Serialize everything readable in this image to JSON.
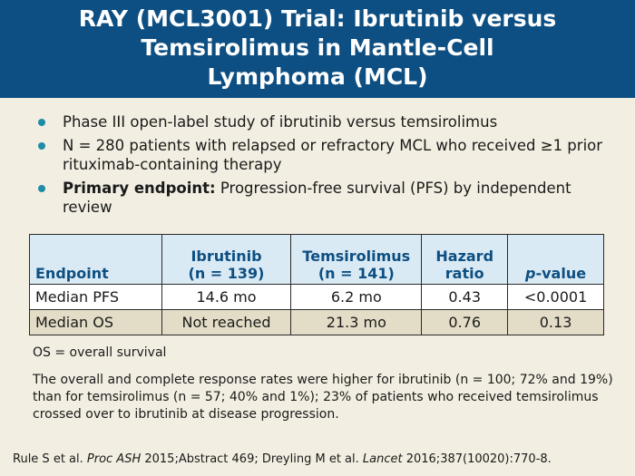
{
  "title": {
    "line1": "RAY (MCL3001) Trial: Ibrutinib versus",
    "line2": "Temsirolimus in Mantle-Cell",
    "line3": "Lymphoma (MCL)"
  },
  "bullets": {
    "b1": "Phase III open-label study of ibrutinib versus temsirolimus",
    "b2": "N = 280 patients with relapsed or refractory MCL who received ≥1 prior rituximab-containing therapy",
    "b3_bold": "Primary endpoint:",
    "b3_rest": " Progression-free survival (PFS) by independent review"
  },
  "table": {
    "headers": {
      "endpoint": "Endpoint",
      "ibrutinib_name": "Ibrutinib",
      "ibrutinib_n": "(n = 139)",
      "temsirolimus_name": "Temsirolimus",
      "temsirolimus_n": "(n = 141)",
      "hazard_1": "Hazard",
      "hazard_2": "ratio",
      "p_italic": "p",
      "p_rest": "-value"
    },
    "rows": [
      {
        "endpoint": "Median PFS",
        "ibrutinib": "14.6 mo",
        "temsirolimus": "6.2 mo",
        "hr": "0.43",
        "p": "<0.0001"
      },
      {
        "endpoint": "Median OS",
        "ibrutinib": "Not reached",
        "temsirolimus": "21.3 mo",
        "hr": "0.76",
        "p": "0.13"
      }
    ]
  },
  "footnote": "OS = overall survival",
  "summary": "The overall and complete response rates were higher for ibrutinib (n = 100; 72% and 19%) than for temsirolimus (n = 57; 40% and 1%); 23% of patients who received temsirolimus crossed over to ibrutinib at disease progression.",
  "reference": {
    "part1": "Rule S et al. ",
    "journal1": "Proc ASH",
    "part2": " 2015;Abstract 469; Dreyling M et al. ",
    "journal2": "Lancet",
    "part3": " 2016;387(10020):770-8."
  },
  "colors": {
    "title_bar": "#0d4f82",
    "background": "#f2eee1",
    "bullet": "#1f8ca8",
    "header_fill": "#daeaf4",
    "alt_row": "#e3dcc6"
  }
}
